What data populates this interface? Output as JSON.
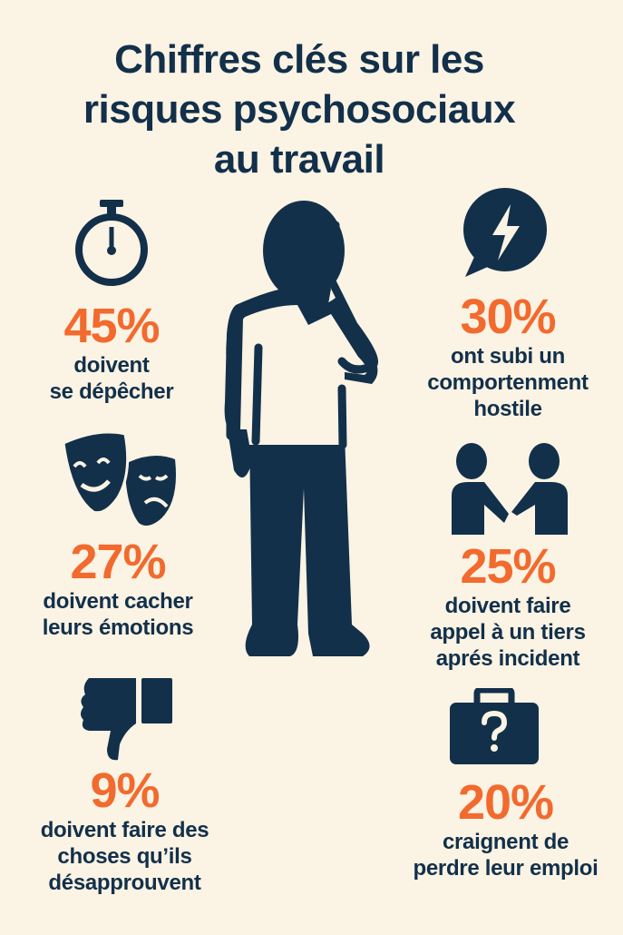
{
  "title": {
    "lines": [
      "Chiffres clés sur les",
      "risques psychosociaux",
      "au travail"
    ]
  },
  "colors": {
    "background": "#FBF3E4",
    "navy": "#12304A",
    "accent": "#F26A2E"
  },
  "figure_icon": "stressed-person-hand-on-head",
  "stats": [
    {
      "icon": "stopwatch-icon",
      "value": "45%",
      "lines": [
        "doivent",
        "se dépêcher"
      ]
    },
    {
      "icon": "lightning-speech-bubble-icon",
      "value": "30%",
      "lines": [
        "ont subi un",
        "comportenment",
        "hostile"
      ]
    },
    {
      "icon": "theater-masks-icon",
      "value": "27%",
      "lines": [
        "doivent cacher",
        "leurs émotions"
      ]
    },
    {
      "icon": "handshake-people-icon",
      "value": "25%",
      "lines": [
        "doivent faire",
        "appel à un tiers",
        "aprés incident"
      ]
    },
    {
      "icon": "thumbs-down-icon",
      "value": "9%",
      "lines": [
        "doivent faire des",
        "choses qu’ils",
        "désapprouvent"
      ]
    },
    {
      "icon": "briefcase-question-icon",
      "value": "20%",
      "lines": [
        "craignent de",
        "perdre leur emploi"
      ]
    }
  ]
}
